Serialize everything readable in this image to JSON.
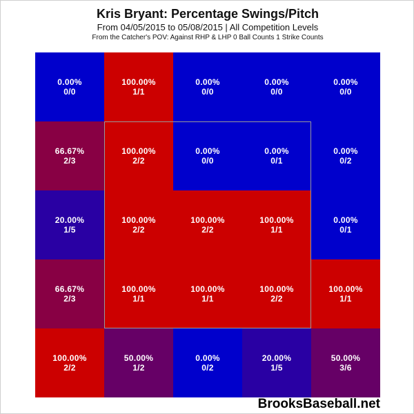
{
  "title": "Kris Bryant: Percentage Swings/Pitch",
  "subtitle": "From 04/05/2015 to 05/08/2015 | All Competition Levels",
  "filters": "From the Catcher's POV:  Against RHP & LHP     0 Ball Counts     1 Strike Counts",
  "watermark": "BrooksBaseball.net",
  "chart_data": {
    "type": "heatmap",
    "rows": 5,
    "cols": 5,
    "cells": [
      [
        {
          "pct": "0.00%",
          "count": "0/0",
          "value": 0.0
        },
        {
          "pct": "100.00%",
          "count": "1/1",
          "value": 100.0
        },
        {
          "pct": "0.00%",
          "count": "0/0",
          "value": 0.0
        },
        {
          "pct": "0.00%",
          "count": "0/0",
          "value": 0.0
        },
        {
          "pct": "0.00%",
          "count": "0/0",
          "value": 0.0
        }
      ],
      [
        {
          "pct": "66.67%",
          "count": "2/3",
          "value": 66.67
        },
        {
          "pct": "100.00%",
          "count": "2/2",
          "value": 100.0
        },
        {
          "pct": "0.00%",
          "count": "0/0",
          "value": 0.0
        },
        {
          "pct": "0.00%",
          "count": "0/1",
          "value": 0.0
        },
        {
          "pct": "0.00%",
          "count": "0/2",
          "value": 0.0
        }
      ],
      [
        {
          "pct": "20.00%",
          "count": "1/5",
          "value": 20.0
        },
        {
          "pct": "100.00%",
          "count": "2/2",
          "value": 100.0
        },
        {
          "pct": "100.00%",
          "count": "2/2",
          "value": 100.0
        },
        {
          "pct": "100.00%",
          "count": "1/1",
          "value": 100.0
        },
        {
          "pct": "0.00%",
          "count": "0/1",
          "value": 0.0
        }
      ],
      [
        {
          "pct": "66.67%",
          "count": "2/3",
          "value": 66.67
        },
        {
          "pct": "100.00%",
          "count": "1/1",
          "value": 100.0
        },
        {
          "pct": "100.00%",
          "count": "1/1",
          "value": 100.0
        },
        {
          "pct": "100.00%",
          "count": "2/2",
          "value": 100.0
        },
        {
          "pct": "100.00%",
          "count": "1/1",
          "value": 100.0
        }
      ],
      [
        {
          "pct": "100.00%",
          "count": "2/2",
          "value": 100.0
        },
        {
          "pct": "50.00%",
          "count": "1/2",
          "value": 50.0
        },
        {
          "pct": "0.00%",
          "count": "0/2",
          "value": 0.0
        },
        {
          "pct": "20.00%",
          "count": "1/5",
          "value": 20.0
        },
        {
          "pct": "50.00%",
          "count": "3/6",
          "value": 50.0
        }
      ]
    ],
    "colors": {
      "low": "#0000CC",
      "high": "#CC0000",
      "mid": "#66005F"
    },
    "strike_zone": {
      "row_start": 1,
      "col_start": 1,
      "row_end": 3,
      "col_end": 3
    }
  }
}
